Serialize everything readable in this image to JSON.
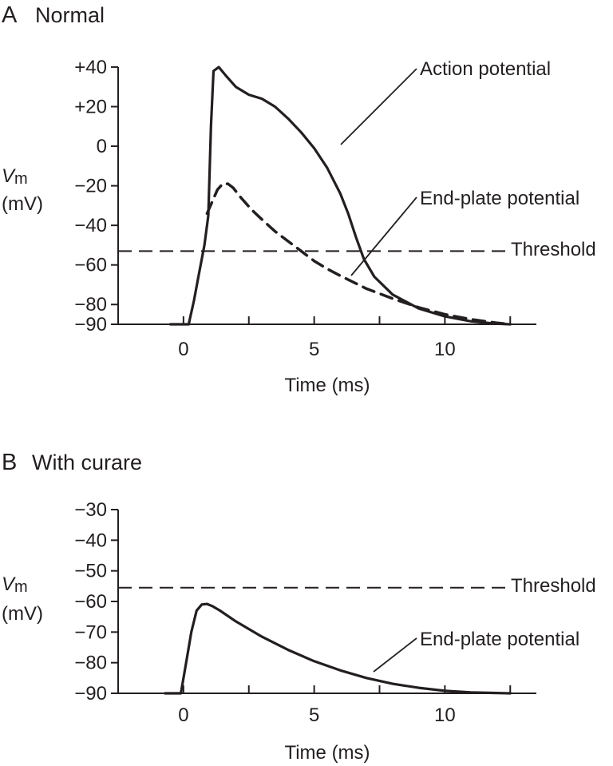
{
  "chart_data": [
    {
      "type": "line",
      "panel_letter": "A",
      "title": "Normal",
      "xlabel": "Time (ms)",
      "ylabel": [
        "V",
        "m",
        "(mV)"
      ],
      "xlim": [
        -2.5,
        13.5
      ],
      "ylim": [
        -90,
        42
      ],
      "x_ticks": [
        -2.5,
        0,
        2.5,
        5,
        7.5,
        10,
        12.5
      ],
      "x_tick_labels": [
        {
          "x": 0,
          "label": "0"
        },
        {
          "x": 5,
          "label": "5"
        },
        {
          "x": 10,
          "label": "10"
        }
      ],
      "y_ticks": [
        40,
        20,
        0,
        -20,
        -40,
        -60,
        -80,
        -90
      ],
      "y_tick_labels": [
        "+40",
        "+20",
        "0",
        "−20",
        "−40",
        "−60",
        "−80",
        "−90"
      ],
      "threshold": {
        "value": -53,
        "label": "Threshold"
      },
      "series": [
        {
          "name": "Action potential",
          "style": "solid",
          "x": [
            -0.5,
            0.2,
            0.4,
            0.6,
            0.8,
            0.95,
            1.05,
            1.15,
            1.35,
            1.6,
            2.0,
            2.5,
            3.0,
            3.5,
            4.0,
            4.5,
            5.0,
            5.5,
            6.0,
            6.3,
            6.6,
            6.9,
            7.3,
            8.0,
            9.0,
            10.0,
            11.0,
            12.0,
            12.5
          ],
          "y": [
            -90,
            -90,
            -78,
            -64,
            -50,
            -35,
            10,
            38,
            40,
            36,
            30,
            26,
            24,
            20,
            14,
            7,
            -1,
            -11,
            -24,
            -34,
            -46,
            -57,
            -66,
            -75,
            -82,
            -86,
            -88.5,
            -89.7,
            -90
          ]
        },
        {
          "name": "End-plate potential",
          "style": "dashed",
          "x": [
            0.9,
            1.1,
            1.3,
            1.5,
            1.7,
            1.9,
            2.2,
            2.6,
            3.0,
            3.5,
            4.0,
            4.5,
            5.0,
            5.5,
            6.0,
            7.0,
            8.0,
            9.0,
            10.0,
            11.0,
            12.0,
            12.5
          ],
          "y": [
            -34,
            -28,
            -22,
            -19,
            -19,
            -21,
            -26,
            -32,
            -37,
            -43,
            -48,
            -53,
            -58,
            -62,
            -65.5,
            -72,
            -77,
            -81.5,
            -85,
            -87.5,
            -89.3,
            -90
          ]
        }
      ],
      "annotations": [
        {
          "text": "Action potential",
          "points_to_x": 6.0
        },
        {
          "text": "End-plate potential",
          "points_to_x": 6.5
        }
      ]
    },
    {
      "type": "line",
      "panel_letter": "B",
      "title": "With curare",
      "xlabel": "Time (ms)",
      "ylabel": [
        "V",
        "m",
        "(mV)"
      ],
      "xlim": [
        -2.5,
        13.5
      ],
      "ylim": [
        -90,
        -30
      ],
      "x_ticks": [
        -2.5,
        0,
        2.5,
        5,
        7.5,
        10,
        12.5
      ],
      "x_tick_labels": [
        {
          "x": 0,
          "label": "0"
        },
        {
          "x": 5,
          "label": "5"
        },
        {
          "x": 10,
          "label": "10"
        }
      ],
      "y_ticks": [
        -30,
        -40,
        -50,
        -60,
        -70,
        -80,
        -90
      ],
      "y_tick_labels": [
        "−30",
        "−40",
        "−50",
        "−60",
        "−70",
        "−80",
        "−90"
      ],
      "threshold": {
        "value": -55.5,
        "label": "Threshold"
      },
      "series": [
        {
          "name": "End-plate potential",
          "style": "solid",
          "x": [
            -0.7,
            -0.1,
            0.1,
            0.3,
            0.5,
            0.7,
            0.9,
            1.1,
            1.4,
            2.0,
            3.0,
            4.0,
            5.0,
            6.0,
            7.0,
            8.0,
            9.0,
            10.0,
            11.0,
            12.0,
            12.5
          ],
          "y": [
            -90,
            -90,
            -80,
            -70,
            -63,
            -61,
            -60.8,
            -61.5,
            -63,
            -66.5,
            -71.5,
            -75.8,
            -79.5,
            -82.5,
            -85,
            -86.9,
            -88.2,
            -89.2,
            -89.7,
            -89.9,
            -90
          ]
        }
      ],
      "annotations": [
        {
          "text": "End-plate potential",
          "points_to_x": 7.3
        }
      ]
    }
  ]
}
